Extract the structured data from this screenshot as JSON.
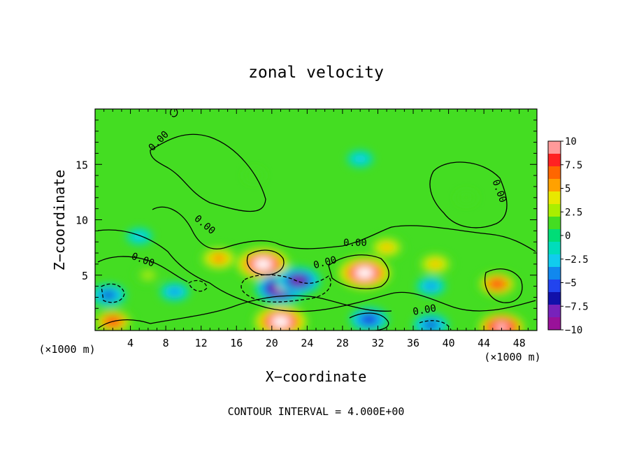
{
  "chart_data": {
    "type": "heatmap",
    "title": "zonal velocity",
    "xlabel": "X−coordinate",
    "ylabel": "Z−coordinate",
    "x_unit_left": "(×1000 m)",
    "x_unit_right": "(×1000 m)",
    "footer": "CONTOUR INTERVAL = 4.000E+00",
    "xlim": [
      0,
      50
    ],
    "ylim": [
      0,
      20
    ],
    "x_ticks": [
      4,
      8,
      12,
      16,
      20,
      24,
      28,
      32,
      36,
      40,
      44,
      48
    ],
    "y_ticks": [
      5,
      10,
      15
    ],
    "colorbar": {
      "range": [
        -10,
        10
      ],
      "ticks": [
        "10",
        "7.5",
        "5",
        "2.5",
        "0",
        "−2.5",
        "−5",
        "−7.5",
        "−10"
      ],
      "colors": [
        "#ff9a9a",
        "#ff2222",
        "#ff6600",
        "#ffa100",
        "#e8e800",
        "#aaee00",
        "#44dd22",
        "#00dd77",
        "#00ddbb",
        "#11ccee",
        "#1188ee",
        "#2244ee",
        "#1111aa",
        "#7722bb",
        "#991199"
      ]
    },
    "contour_interval": 4.0,
    "contour_labels": [
      "0.00",
      "0.00",
      "0.00",
      "0.00",
      "0.00",
      "0.00",
      "0.00"
    ],
    "features": [
      {
        "x": 19,
        "z": 6.0,
        "value": 13
      },
      {
        "x": 21,
        "z": 3.8,
        "value": -11
      },
      {
        "x": 23,
        "z": 4.5,
        "value": -9
      },
      {
        "x": 30.5,
        "z": 5.2,
        "value": 13
      },
      {
        "x": 14,
        "z": 6.5,
        "value": 7
      },
      {
        "x": 45.5,
        "z": 4.2,
        "value": 8
      },
      {
        "x": 46,
        "z": 0.3,
        "value": 11
      },
      {
        "x": 21,
        "z": 0.8,
        "value": 13
      },
      {
        "x": 2,
        "z": 0.8,
        "value": 8
      },
      {
        "x": 1.5,
        "z": 3.2,
        "value": -6
      },
      {
        "x": 31,
        "z": 1.0,
        "value": -7
      },
      {
        "x": 38,
        "z": 0.5,
        "value": -6
      },
      {
        "x": 33,
        "z": 7.5,
        "value": 6
      },
      {
        "x": 38.5,
        "z": 6.0,
        "value": 6
      },
      {
        "x": 38,
        "z": 4.0,
        "value": -4
      },
      {
        "x": 6,
        "z": 5.0,
        "value": 3
      },
      {
        "x": 9,
        "z": 3.5,
        "value": -4
      },
      {
        "x": 18,
        "z": 14.0,
        "value": 1
      },
      {
        "x": 42,
        "z": 12.0,
        "value": 1
      },
      {
        "x": 30,
        "z": 15.5,
        "value": -3
      },
      {
        "x": 5,
        "z": 8.5,
        "value": -3
      }
    ]
  }
}
